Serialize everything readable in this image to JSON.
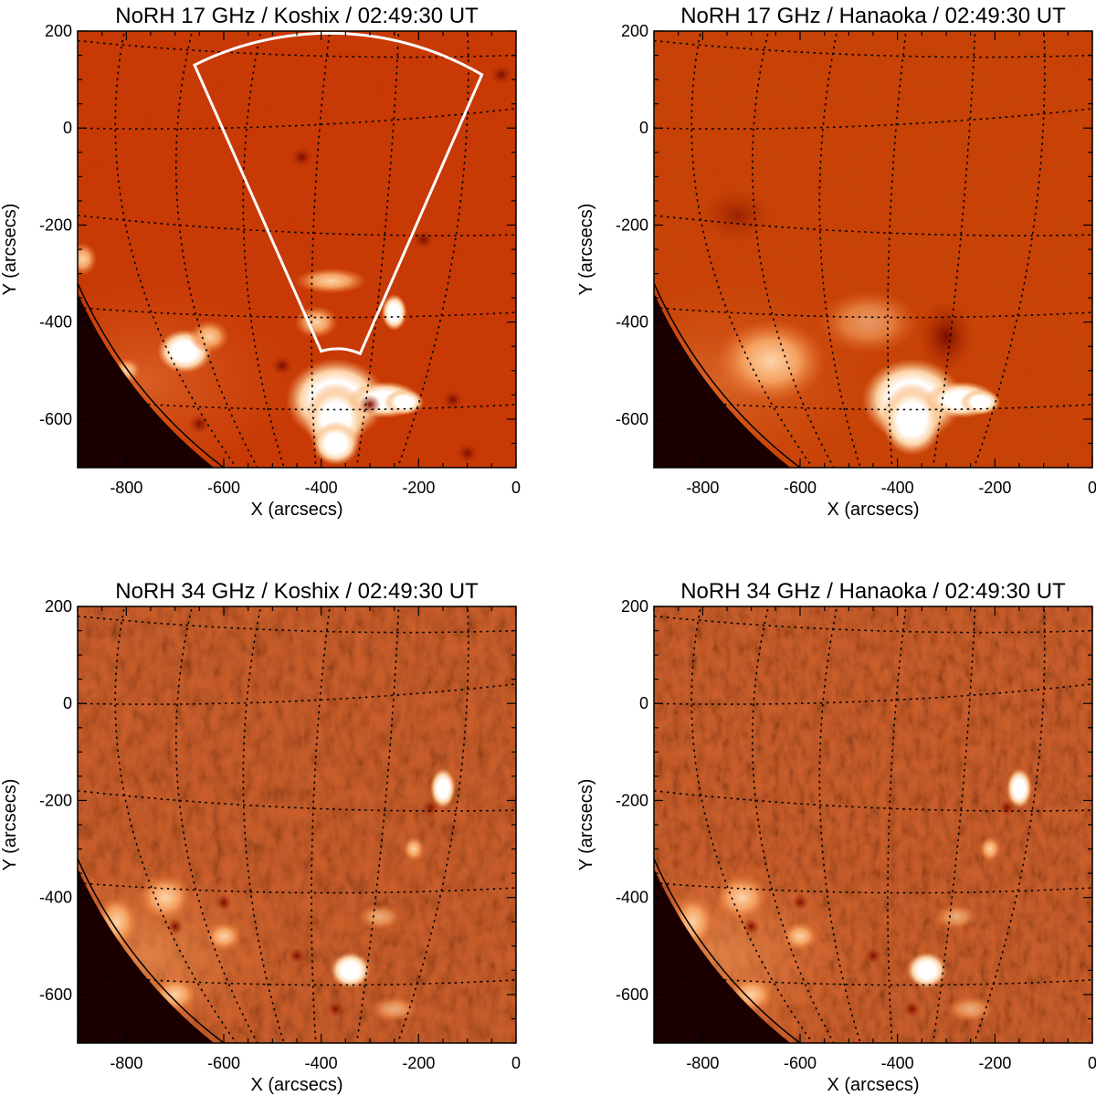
{
  "colors": {
    "colormap": [
      "#000000",
      "#3a0000",
      "#7a0d00",
      "#b02800",
      "#d24a10",
      "#e8722e",
      "#f4a060",
      "#fcd4a8",
      "#ffffff"
    ],
    "frame": "#000000",
    "grid": "#000000",
    "box": "#ffffff"
  },
  "panels": [
    {
      "id": "p17k",
      "title": "NoRH 17 GHz / Koshix / 02:49:30 UT",
      "band": "17 GHz",
      "instrument": "Koshix",
      "xlabel": "X (arcsecs)",
      "ylabel": "Y (arcsecs)",
      "xticks": [
        "-800",
        "-600",
        "-400",
        "-200",
        "0"
      ],
      "yticks": [
        "200",
        "0",
        "-200",
        "-400",
        "-600"
      ],
      "has_sector_box": true
    },
    {
      "id": "p17h",
      "title": "NoRH 17 GHz / Hanaoka / 02:49:30 UT",
      "band": "17 GHz",
      "instrument": "Hanaoka",
      "xlabel": "X (arcsecs)",
      "ylabel": "Y (arcsecs)",
      "xticks": [
        "-800",
        "-600",
        "-400",
        "-200",
        "0"
      ],
      "yticks": [
        "200",
        "0",
        "-200",
        "-400",
        "-600"
      ],
      "has_sector_box": false
    },
    {
      "id": "p34k",
      "title": "NoRH 34 GHz / Koshix / 02:49:30 UT",
      "band": "34 GHz",
      "instrument": "Koshix",
      "xlabel": "X (arcsecs)",
      "ylabel": "Y (arcsecs)",
      "xticks": [
        "-800",
        "-600",
        "-400",
        "-200",
        "0"
      ],
      "yticks": [
        "200",
        "0",
        "-200",
        "-400",
        "-600"
      ],
      "has_sector_box": false
    },
    {
      "id": "p34h",
      "title": "NoRH 34 GHz / Hanaoka / 02:49:30 UT",
      "band": "34 GHz",
      "instrument": "Hanaoka",
      "xlabel": "X (arcsecs)",
      "ylabel": "Y (arcsecs)",
      "xticks": [
        "-800",
        "-600",
        "-400",
        "-200",
        "0"
      ],
      "yticks": [
        "200",
        "0",
        "-200",
        "-400",
        "-600"
      ],
      "has_sector_box": false
    }
  ],
  "axis_range": {
    "x": [
      -900,
      0
    ],
    "y": [
      -700,
      200
    ]
  }
}
